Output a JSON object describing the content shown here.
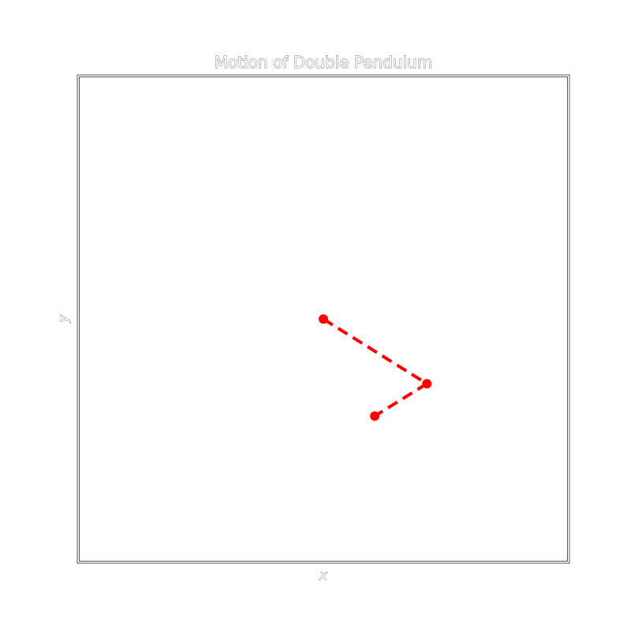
{
  "chart_data": {
    "type": "line",
    "title": "Motion of Double Pendulum",
    "xlabel": "x",
    "ylabel": "y",
    "xlim": [
      -3,
      3
    ],
    "ylim": [
      -3,
      3
    ],
    "grid": false,
    "ticks": false,
    "series": [
      {
        "style": "dashed",
        "marker": "circle",
        "color": "#ff0000",
        "x": [
          0.0,
          1.27,
          0.63
        ],
        "y": [
          0.0,
          -0.8,
          -1.2
        ]
      }
    ]
  }
}
